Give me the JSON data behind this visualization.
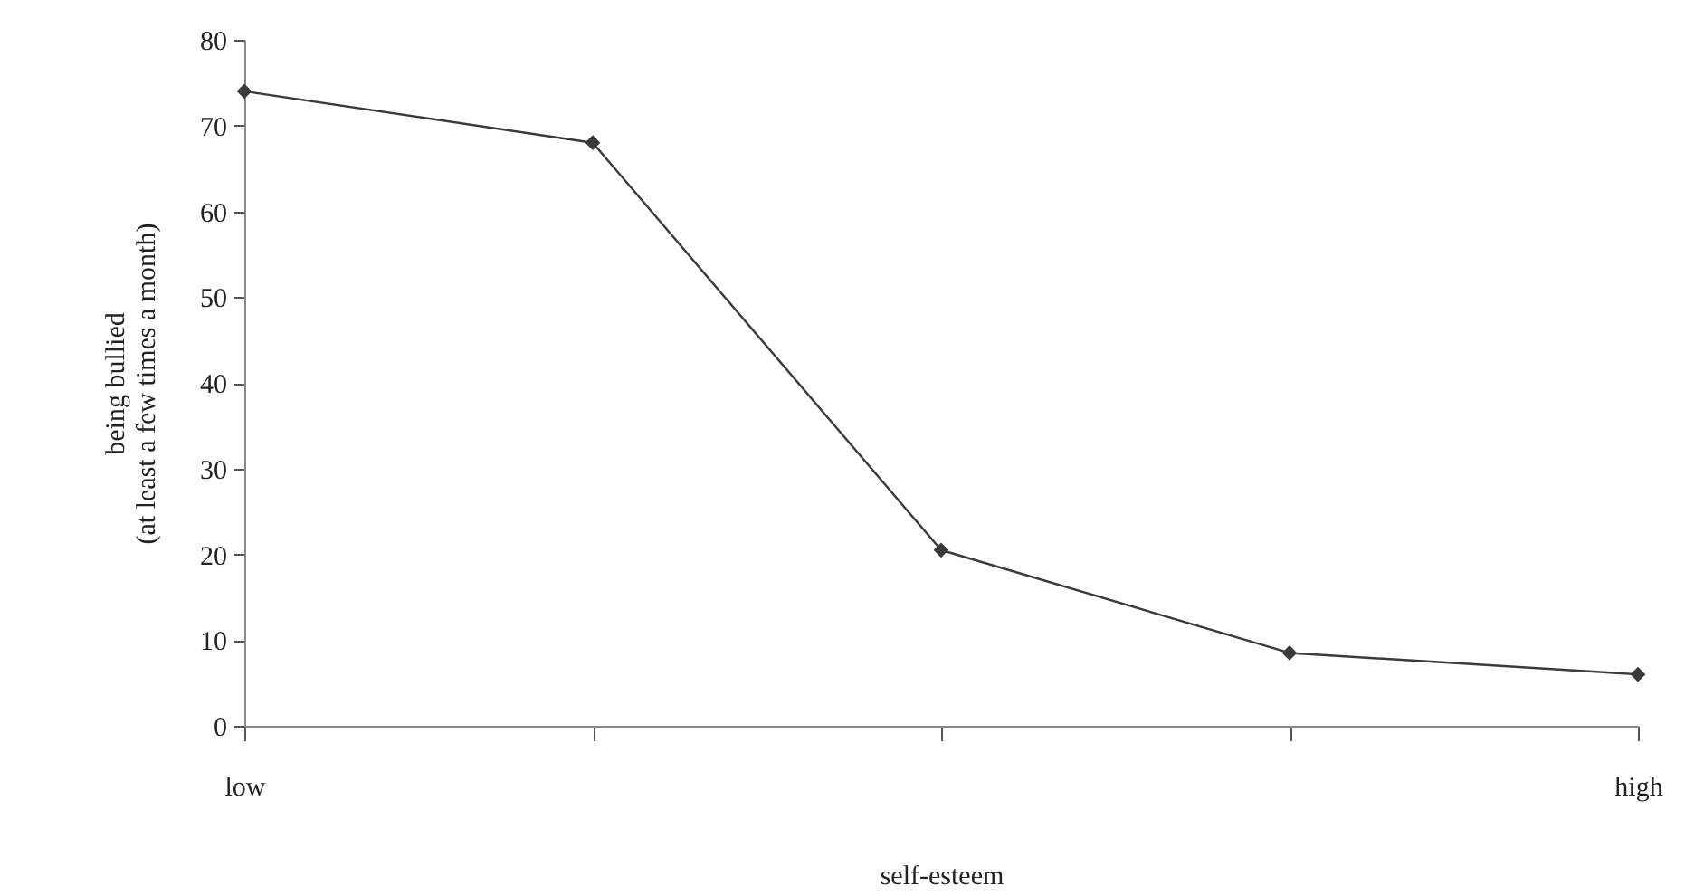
{
  "chart_data": {
    "type": "line",
    "xlabel": "self-esteem",
    "ylabel": "being bullied\n(at least a few times a month)",
    "categories": [
      "low",
      null,
      null,
      null,
      "high"
    ],
    "series": [
      {
        "color": "#3a3a3a",
        "values": [
          74,
          68,
          20.5,
          8.5,
          6
        ]
      }
    ],
    "ylim": [
      0,
      80
    ],
    "yticks": [
      0,
      10,
      20,
      30,
      40,
      50,
      60,
      70,
      80
    ],
    "grid": false,
    "legend": false,
    "marker": "diamond",
    "line_style": "solid"
  }
}
